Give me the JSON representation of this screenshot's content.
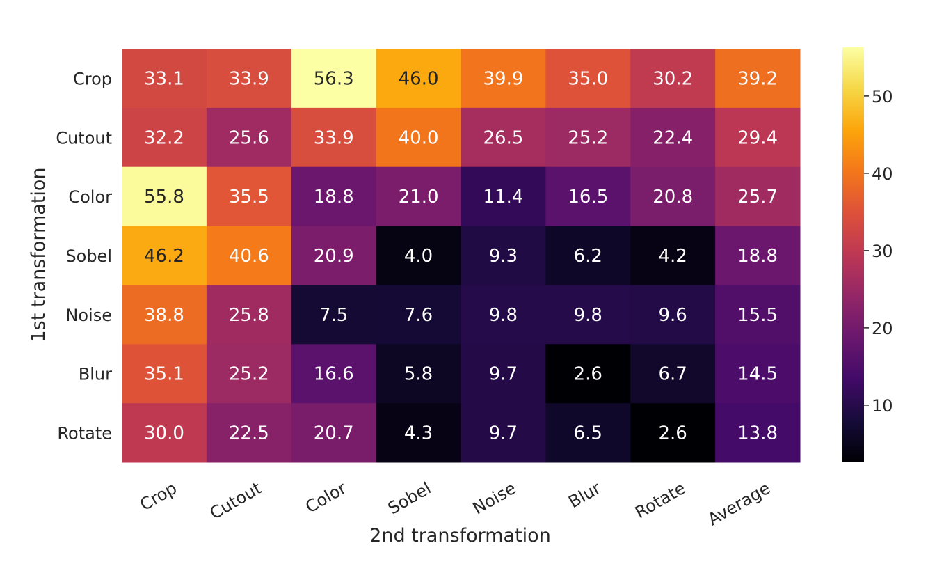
{
  "chart_data": {
    "type": "heatmap",
    "title": "",
    "xlabel": "2nd transformation",
    "ylabel": "1st transformation",
    "x_categories": [
      "Crop",
      "Cutout",
      "Color",
      "Sobel",
      "Noise",
      "Blur",
      "Rotate",
      "Average"
    ],
    "y_categories": [
      "Crop",
      "Cutout",
      "Color",
      "Sobel",
      "Noise",
      "Blur",
      "Rotate"
    ],
    "values": [
      [
        33.1,
        33.9,
        56.3,
        46.0,
        39.9,
        35.0,
        30.2,
        39.2
      ],
      [
        32.2,
        25.6,
        33.9,
        40.0,
        26.5,
        25.2,
        22.4,
        29.4
      ],
      [
        55.8,
        35.5,
        18.8,
        21.0,
        11.4,
        16.5,
        20.8,
        25.7
      ],
      [
        46.2,
        40.6,
        20.9,
        4.0,
        9.3,
        6.2,
        4.2,
        18.8
      ],
      [
        38.8,
        25.8,
        7.5,
        7.6,
        9.8,
        9.8,
        9.6,
        15.5
      ],
      [
        35.1,
        25.2,
        16.6,
        5.8,
        9.7,
        2.6,
        6.7,
        14.5
      ],
      [
        30.0,
        22.5,
        20.7,
        4.3,
        9.7,
        6.5,
        2.6,
        13.8
      ]
    ],
    "value_labels": [
      [
        "33.1",
        "33.9",
        "56.3",
        "46.0",
        "39.9",
        "35.0",
        "30.2",
        "39.2"
      ],
      [
        "32.2",
        "25.6",
        "33.9",
        "40.0",
        "26.5",
        "25.2",
        "22.4",
        "29.4"
      ],
      [
        "55.8",
        "35.5",
        "18.8",
        "21.0",
        "11.4",
        "16.5",
        "20.8",
        "25.7"
      ],
      [
        "46.2",
        "40.6",
        "20.9",
        "4.0",
        "9.3",
        "6.2",
        "4.2",
        "18.8"
      ],
      [
        "38.8",
        "25.8",
        "7.5",
        "7.6",
        "9.8",
        "9.8",
        "9.6",
        "15.5"
      ],
      [
        "35.1",
        "25.2",
        "16.6",
        "5.8",
        "9.7",
        "2.6",
        "6.7",
        "14.5"
      ],
      [
        "30.0",
        "22.5",
        "20.7",
        "4.3",
        "9.7",
        "6.5",
        "2.6",
        "13.8"
      ]
    ],
    "colormap": "inferno",
    "color_range": [
      2.6,
      56.3
    ],
    "colorbar_ticks": [
      10,
      20,
      30,
      40,
      50
    ],
    "colorbar_tick_labels": [
      "10",
      "20",
      "30",
      "40",
      "50"
    ],
    "annotation_colors": {
      "light": "#ffffff",
      "dark": "#262626"
    },
    "grid": false
  }
}
